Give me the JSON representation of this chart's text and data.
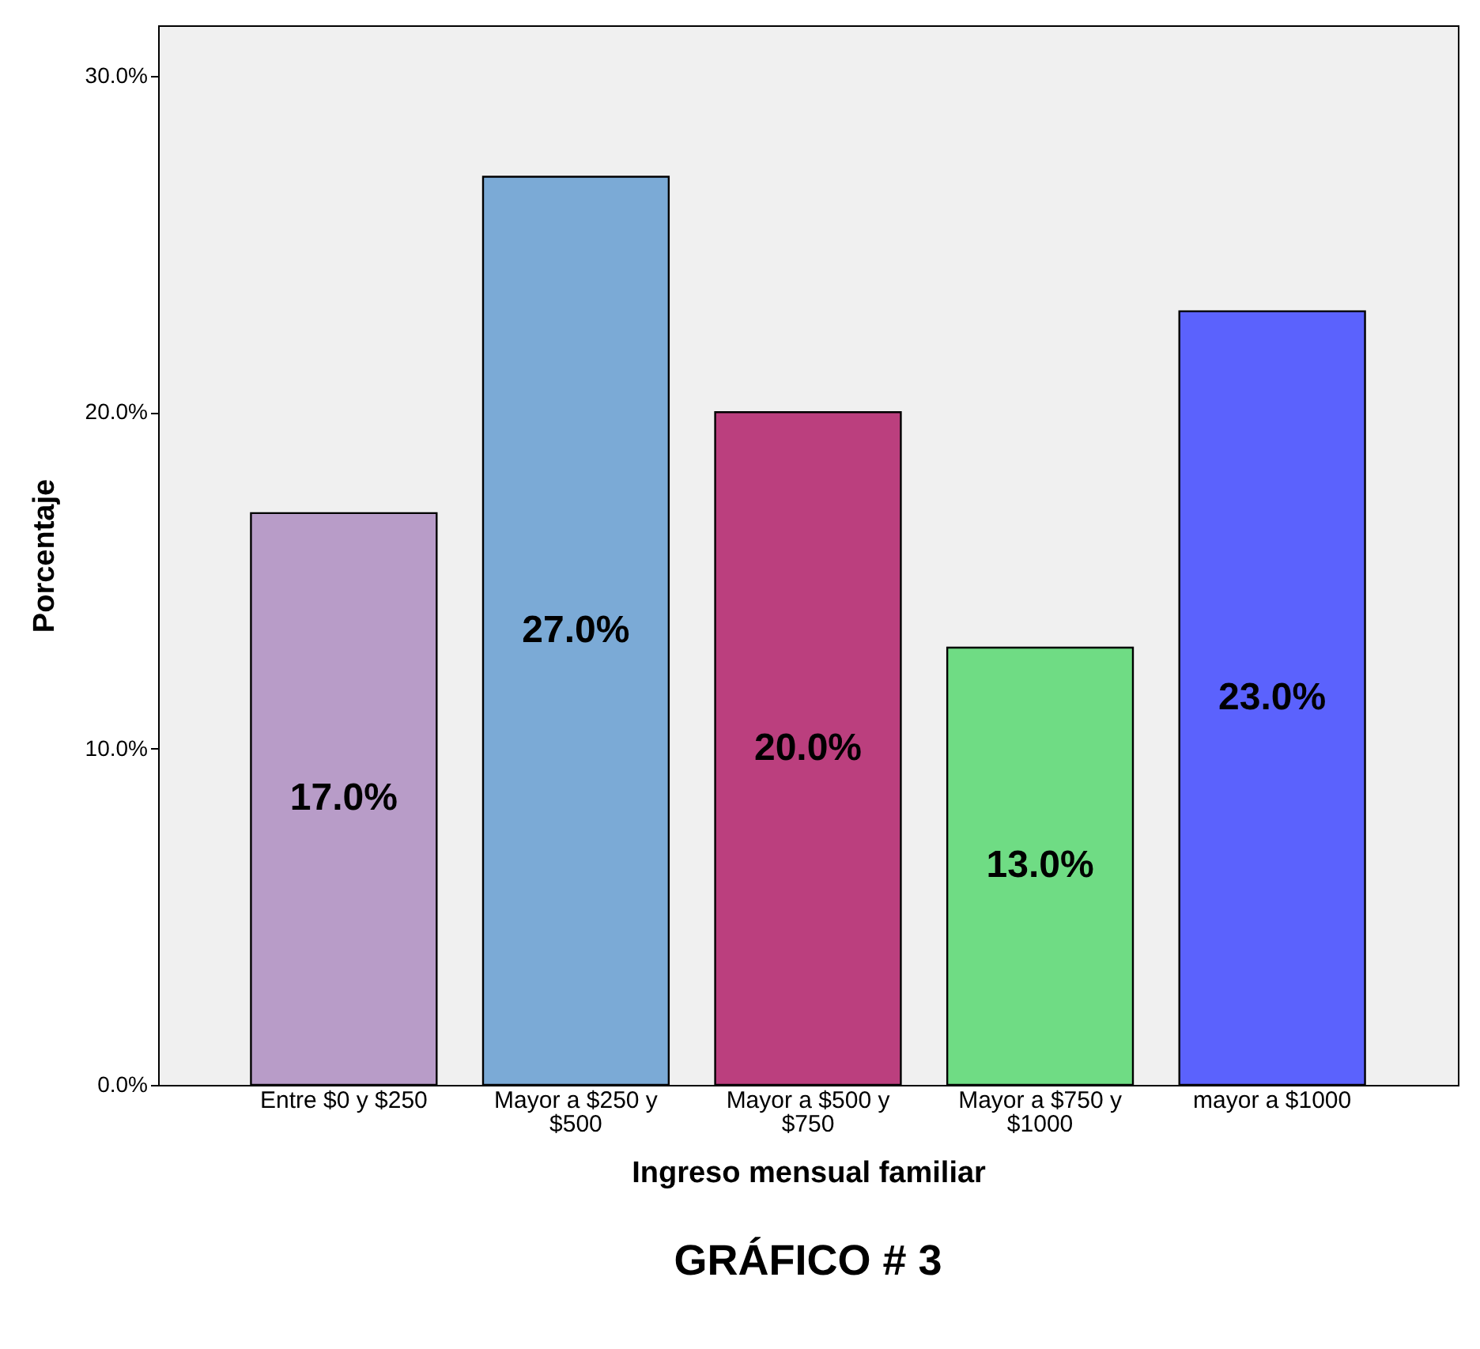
{
  "chart_data": {
    "type": "bar",
    "title": "GRÁFICO # 3",
    "xlabel": "Ingreso mensual familiar",
    "ylabel": "Porcentaje",
    "categories": [
      "Entre $0 y $250",
      "Mayor a $250 y $500",
      "Mayor a $500 y $750",
      "Mayor a $750 y $1000",
      "mayor a $1000"
    ],
    "values": [
      17.0,
      27.0,
      20.0,
      13.0,
      23.0
    ],
    "colors": [
      "#b89cc8",
      "#7baad6",
      "#bb3f7e",
      "#6fdc84",
      "#5b62fd"
    ],
    "value_labels": [
      "17.0%",
      "27.0%",
      "20.0%",
      "13.0%",
      "23.0%"
    ],
    "ylim": [
      0,
      31.5
    ],
    "yticks": [
      {
        "value": 0,
        "label": "0.0%"
      },
      {
        "value": 10,
        "label": "10.0%"
      },
      {
        "value": 20,
        "label": "20.0%"
      },
      {
        "value": 30,
        "label": "30.0%"
      }
    ],
    "grid": false
  }
}
